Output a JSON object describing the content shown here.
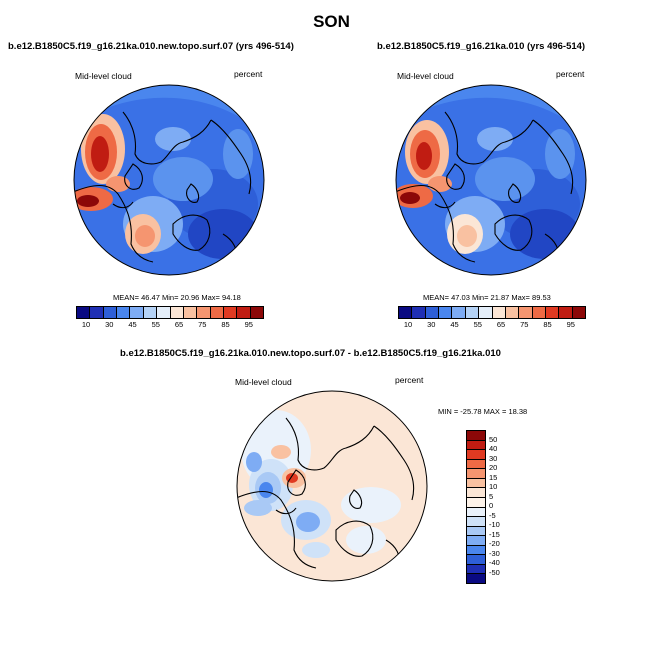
{
  "season_title": "SON",
  "panels": {
    "left": {
      "case_title": "b.e12.B1850C5.f19_g16.21ka.010.new.topo.surf.07 (yrs 496-514)",
      "left_string": "Mid-level cloud",
      "right_string": "percent",
      "stats": "MEAN= 46.47  Min= 20.96  Max= 94.18"
    },
    "right": {
      "case_title": "b.e12.B1850C5.f19_g16.21ka.010 (yrs 496-514)",
      "left_string": "Mid-level cloud",
      "right_string": "percent",
      "stats": "MEAN= 47.03  Min= 21.87  Max= 89.53"
    },
    "diff": {
      "case_title": "b.e12.B1850C5.f19_g16.21ka.010.new.topo.surf.07 - b.e12.B1850C5.f19_g16.21ka.010",
      "left_string": "Mid-level cloud",
      "right_string": "percent",
      "stats": "MIN = -25.78 MAX =  18.38"
    }
  },
  "abs_colorbar": {
    "colors": [
      "#0a0a82",
      "#1f2fb4",
      "#2e5fd8",
      "#4a86ee",
      "#7eacf4",
      "#b5d3f7",
      "#e4eef9",
      "#fbe6d6",
      "#f9c1a1",
      "#f59570",
      "#ee6a45",
      "#e03a22",
      "#c01c12",
      "#8c0808"
    ],
    "labels": [
      "10",
      "30",
      "45",
      "55",
      "65",
      "75",
      "85",
      "95"
    ]
  },
  "diff_colorbar": {
    "colors": [
      "#8c0808",
      "#c01c12",
      "#e03a22",
      "#ee6a45",
      "#f59570",
      "#f9c1a1",
      "#fbe6d6",
      "#fdf3ea",
      "#eaf2fb",
      "#cfe2f8",
      "#a9c9f5",
      "#7eacf4",
      "#4a86ee",
      "#2e5fd8",
      "#1f2fb4",
      "#0a0a82"
    ],
    "labels": [
      "50",
      "40",
      "30",
      "20",
      "15",
      "10",
      "5",
      "0",
      "-5",
      "-10",
      "-15",
      "-20",
      "-30",
      "-40",
      "-50"
    ]
  }
}
